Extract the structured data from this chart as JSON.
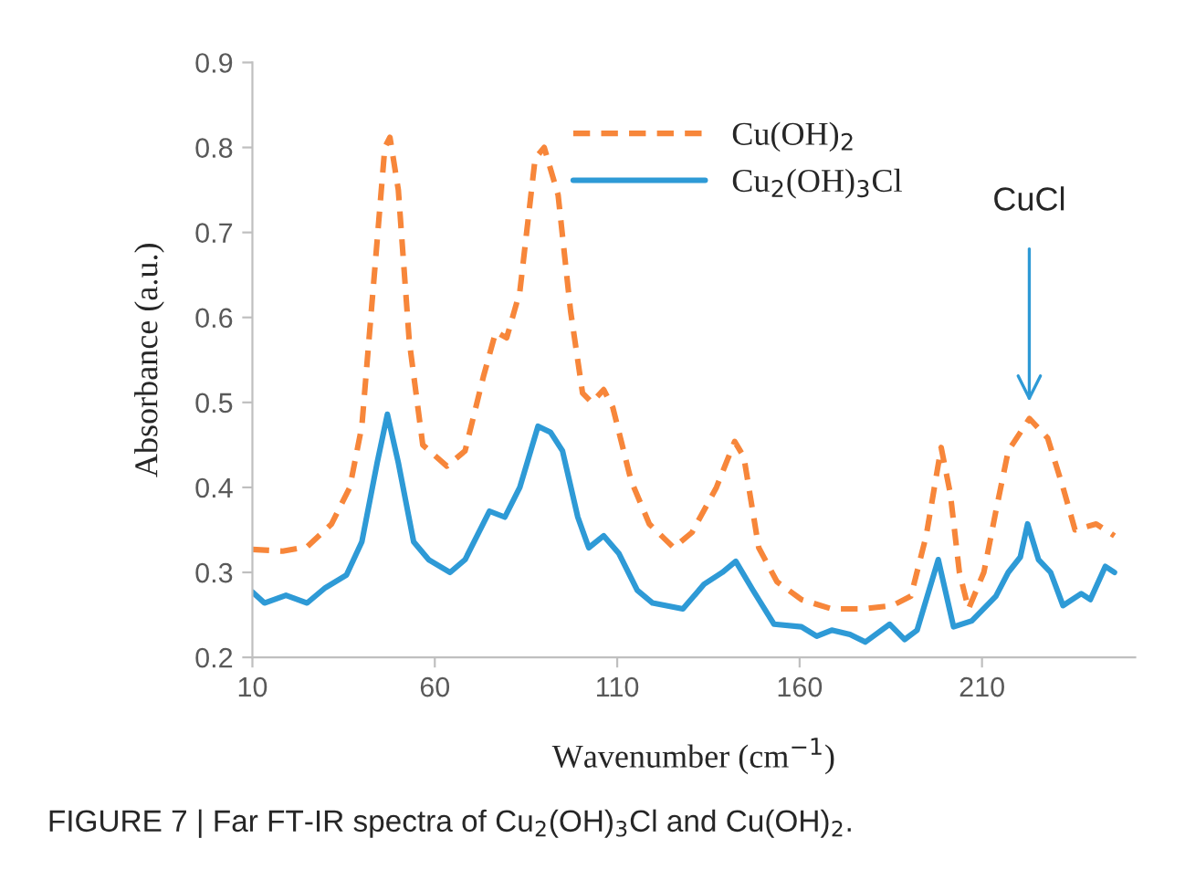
{
  "chart_data": {
    "type": "line",
    "xlabel": "Wavenumber (cm$^{−1}$)",
    "ylabel": "Absorbance (a.u.)",
    "xlim": [
      10,
      252
    ],
    "xticks": [
      10,
      60,
      110,
      160,
      210
    ],
    "ylim": [
      0.2,
      0.9
    ],
    "yticks": [
      0.2,
      0.3,
      0.4,
      0.5,
      0.6,
      0.7,
      0.8,
      0.9
    ],
    "grid": false,
    "legend": "top",
    "marker": "none",
    "series": [
      {
        "name": "Cu(OH)$_{2}$",
        "color": "#f7863a",
        "line_style": "dashed",
        "x": [
          10,
          18.3,
          25,
          31.7,
          36.7,
          40,
          43.3,
          46.3,
          47.7,
          50,
          53,
          56.7,
          63.3,
          68.3,
          73.3,
          76.7,
          79.7,
          83.3,
          87.5,
          90,
          93.8,
          97.2,
          100.5,
          103,
          106.3,
          108.8,
          113.8,
          118.8,
          125.5,
          130.5,
          137.2,
          142.2,
          144.7,
          148.8,
          153.8,
          160.5,
          168.8,
          177.2,
          185.5,
          190.5,
          194.7,
          198.8,
          201.3,
          203.8,
          206.3,
          210.5,
          213.8,
          217.2,
          223,
          228,
          232.2,
          235.5,
          241.3,
          246.3
        ],
        "values": [
          0.327,
          0.325,
          0.33,
          0.357,
          0.4,
          0.472,
          0.644,
          0.8,
          0.812,
          0.75,
          0.572,
          0.45,
          0.425,
          0.443,
          0.53,
          0.583,
          0.576,
          0.63,
          0.787,
          0.8,
          0.744,
          0.608,
          0.511,
          0.5,
          0.515,
          0.494,
          0.408,
          0.357,
          0.329,
          0.347,
          0.4,
          0.454,
          0.436,
          0.329,
          0.289,
          0.268,
          0.257,
          0.257,
          0.261,
          0.272,
          0.343,
          0.447,
          0.393,
          0.3,
          0.257,
          0.3,
          0.372,
          0.443,
          0.481,
          0.458,
          0.4,
          0.35,
          0.357,
          0.343
        ]
      },
      {
        "name": "Cu$_{2}$(OH)$_{3}$Cl",
        "color": "#2e9ad6",
        "line_style": "solid",
        "x": [
          10,
          13.3,
          19.2,
          25,
          30,
          35.8,
          40,
          44.2,
          47,
          50,
          54.2,
          58.3,
          64.2,
          68.3,
          75,
          79.2,
          83.3,
          88.3,
          91.7,
          95,
          99.2,
          102.2,
          106.3,
          110.5,
          115.5,
          119.7,
          128,
          133.8,
          138.8,
          142.5,
          147.2,
          153,
          160.5,
          164.7,
          168.8,
          173.8,
          178,
          184.7,
          188.8,
          192.2,
          198,
          202.2,
          207.2,
          213.8,
          217.2,
          220.5,
          222.5,
          225.5,
          228.8,
          232.2,
          237.2,
          239.7,
          243.8,
          246.3
        ],
        "values": [
          0.277,
          0.264,
          0.273,
          0.264,
          0.282,
          0.297,
          0.336,
          0.429,
          0.486,
          0.429,
          0.336,
          0.315,
          0.3,
          0.315,
          0.372,
          0.365,
          0.4,
          0.472,
          0.465,
          0.443,
          0.365,
          0.329,
          0.343,
          0.322,
          0.279,
          0.264,
          0.257,
          0.286,
          0.3,
          0.313,
          0.279,
          0.239,
          0.236,
          0.225,
          0.232,
          0.227,
          0.218,
          0.239,
          0.221,
          0.232,
          0.315,
          0.236,
          0.243,
          0.272,
          0.3,
          0.318,
          0.357,
          0.315,
          0.3,
          0.261,
          0.275,
          0.268,
          0.307,
          0.3
        ]
      }
    ],
    "annotations": [
      "CuCl",
      "FIGURE 7 | Far FT-IR spectra of Cu$_{2}$(OH)$_{3}$Cl and Cu(OH)$_{2}$."
    ]
  }
}
